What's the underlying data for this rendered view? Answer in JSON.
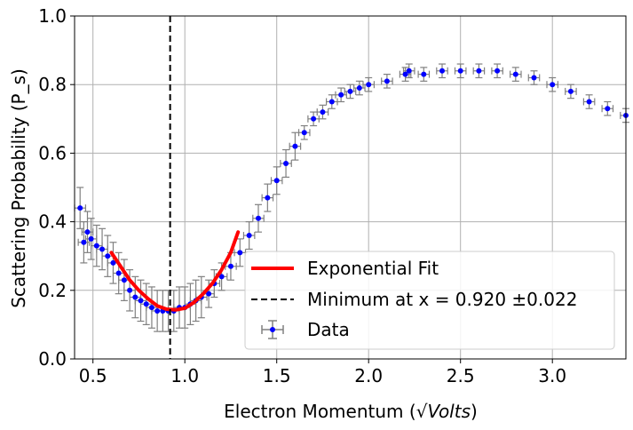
{
  "chart_data": {
    "type": "scatter",
    "title": "",
    "xlabel_prefix": "Electron Momentum (",
    "xlabel_root_symbol": "√",
    "xlabel_unit": "Volts",
    "xlabel_suffix": ")",
    "ylabel": "Scattering Probability (P_s)",
    "xlim": [
      0.4,
      3.4
    ],
    "ylim": [
      0.0,
      1.0
    ],
    "x_ticks": [
      0.5,
      1.0,
      1.5,
      2.0,
      2.5,
      3.0
    ],
    "x_tick_labels": [
      "0.5",
      "1.0",
      "1.5",
      "2.0",
      "2.5",
      "3.0"
    ],
    "y_ticks": [
      0.0,
      0.2,
      0.4,
      0.6,
      0.8,
      1.0
    ],
    "y_tick_labels": [
      "0.0",
      "0.2",
      "0.4",
      "0.6",
      "0.8",
      "1.0"
    ],
    "grid": true,
    "legend_position": "lower-right",
    "colors": {
      "data": "#0000ff",
      "error_bars": "#808080",
      "fit": "#ff0000",
      "minimum_line": "#000000",
      "grid": "#b0b0b0"
    },
    "legend": [
      {
        "label": "Exponential Fit",
        "style": "fit-line"
      },
      {
        "label": "Minimum at x = 0.920 ±0.022",
        "style": "dashed-line"
      },
      {
        "label": "Data",
        "style": "errorbar-marker"
      }
    ],
    "minimum_x": 0.92,
    "series": [
      {
        "name": "Data",
        "x": [
          0.43,
          0.45,
          0.47,
          0.49,
          0.52,
          0.55,
          0.58,
          0.61,
          0.64,
          0.67,
          0.7,
          0.73,
          0.76,
          0.79,
          0.82,
          0.85,
          0.88,
          0.91,
          0.94,
          0.97,
          1.0,
          1.03,
          1.06,
          1.09,
          1.13,
          1.16,
          1.2,
          1.25,
          1.3,
          1.35,
          1.4,
          1.45,
          1.5,
          1.55,
          1.6,
          1.65,
          1.7,
          1.75,
          1.8,
          1.85,
          1.9,
          1.95,
          2.0,
          2.1,
          2.2,
          2.22,
          2.3,
          2.4,
          2.5,
          2.6,
          2.7,
          2.8,
          2.9,
          3.0,
          3.1,
          3.2,
          3.3,
          3.4
        ],
        "y": [
          0.44,
          0.34,
          0.37,
          0.35,
          0.33,
          0.32,
          0.3,
          0.28,
          0.25,
          0.23,
          0.2,
          0.18,
          0.17,
          0.16,
          0.15,
          0.14,
          0.14,
          0.14,
          0.14,
          0.15,
          0.15,
          0.16,
          0.17,
          0.18,
          0.19,
          0.22,
          0.24,
          0.27,
          0.31,
          0.36,
          0.41,
          0.47,
          0.52,
          0.57,
          0.62,
          0.66,
          0.7,
          0.72,
          0.75,
          0.77,
          0.78,
          0.79,
          0.8,
          0.81,
          0.83,
          0.84,
          0.83,
          0.84,
          0.84,
          0.84,
          0.84,
          0.83,
          0.82,
          0.8,
          0.78,
          0.75,
          0.73,
          0.71
        ],
        "xerr": [
          0.03,
          0.03,
          0.03,
          0.03,
          0.03,
          0.03,
          0.03,
          0.03,
          0.03,
          0.03,
          0.03,
          0.03,
          0.03,
          0.03,
          0.03,
          0.03,
          0.03,
          0.03,
          0.03,
          0.03,
          0.03,
          0.03,
          0.03,
          0.03,
          0.03,
          0.03,
          0.03,
          0.03,
          0.03,
          0.03,
          0.03,
          0.03,
          0.03,
          0.03,
          0.03,
          0.03,
          0.03,
          0.03,
          0.03,
          0.03,
          0.03,
          0.03,
          0.03,
          0.03,
          0.03,
          0.03,
          0.03,
          0.03,
          0.03,
          0.03,
          0.03,
          0.03,
          0.03,
          0.03,
          0.03,
          0.03,
          0.03,
          0.03
        ],
        "yerr": [
          0.06,
          0.06,
          0.06,
          0.06,
          0.06,
          0.06,
          0.06,
          0.06,
          0.06,
          0.06,
          0.06,
          0.06,
          0.06,
          0.06,
          0.06,
          0.06,
          0.06,
          0.06,
          0.06,
          0.06,
          0.06,
          0.06,
          0.06,
          0.06,
          0.04,
          0.04,
          0.04,
          0.04,
          0.04,
          0.04,
          0.04,
          0.04,
          0.04,
          0.04,
          0.04,
          0.02,
          0.02,
          0.02,
          0.02,
          0.02,
          0.02,
          0.02,
          0.02,
          0.02,
          0.02,
          0.02,
          0.02,
          0.02,
          0.02,
          0.02,
          0.02,
          0.02,
          0.02,
          0.02,
          0.02,
          0.02,
          0.02,
          0.02
        ]
      },
      {
        "name": "Exponential Fit",
        "x": [
          0.6,
          0.65,
          0.7,
          0.75,
          0.8,
          0.85,
          0.9,
          0.95,
          1.0,
          1.05,
          1.1,
          1.15,
          1.2,
          1.25,
          1.29
        ],
        "y": [
          0.31,
          0.27,
          0.23,
          0.2,
          0.175,
          0.155,
          0.145,
          0.143,
          0.148,
          0.165,
          0.19,
          0.22,
          0.26,
          0.31,
          0.37
        ]
      }
    ]
  }
}
